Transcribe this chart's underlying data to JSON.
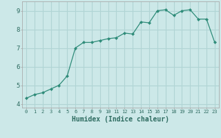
{
  "x": [
    0,
    1,
    2,
    3,
    4,
    5,
    6,
    7,
    8,
    9,
    10,
    11,
    12,
    13,
    14,
    15,
    16,
    17,
    18,
    19,
    20,
    21,
    22,
    23
  ],
  "y": [
    4.3,
    4.5,
    4.6,
    4.8,
    5.0,
    5.5,
    7.0,
    7.3,
    7.3,
    7.4,
    7.5,
    7.55,
    7.8,
    7.75,
    8.4,
    8.35,
    9.0,
    9.05,
    8.75,
    9.0,
    9.05,
    8.55,
    8.55,
    7.3
  ],
  "line_color": "#2d8b78",
  "marker": "D",
  "marker_size": 2.2,
  "bg_color": "#cce8e8",
  "grid_color": "#b0d4d4",
  "xlabel": "Humidex (Indice chaleur)",
  "xlabel_fontsize": 7,
  "tick_color": "#2d6b60",
  "axis_color": "#aaaaaa",
  "xlim": [
    -0.5,
    23.5
  ],
  "ylim": [
    3.8,
    9.5
  ],
  "yticks": [
    4,
    5,
    6,
    7,
    8,
    9
  ],
  "xticks": [
    0,
    1,
    2,
    3,
    4,
    5,
    6,
    7,
    8,
    9,
    10,
    11,
    12,
    13,
    14,
    15,
    16,
    17,
    18,
    19,
    20,
    21,
    22,
    23
  ]
}
